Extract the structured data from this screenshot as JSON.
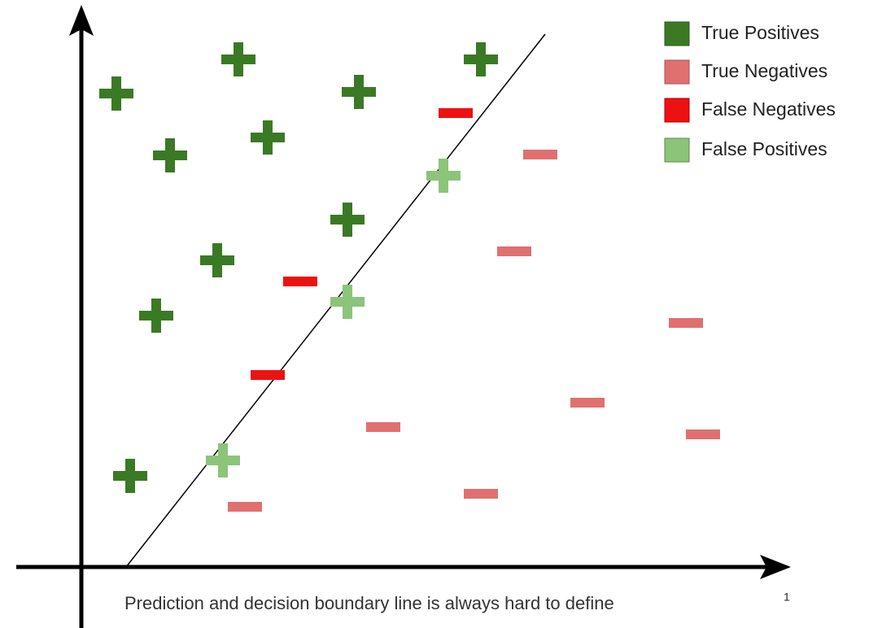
{
  "legend": {
    "items": [
      "True Positives",
      "True Negatives",
      "False Negatives",
      "False Positives"
    ]
  },
  "caption": {
    "text": "Prediction and decision boundary line is always hard to define",
    "footnote": "1"
  }
}
